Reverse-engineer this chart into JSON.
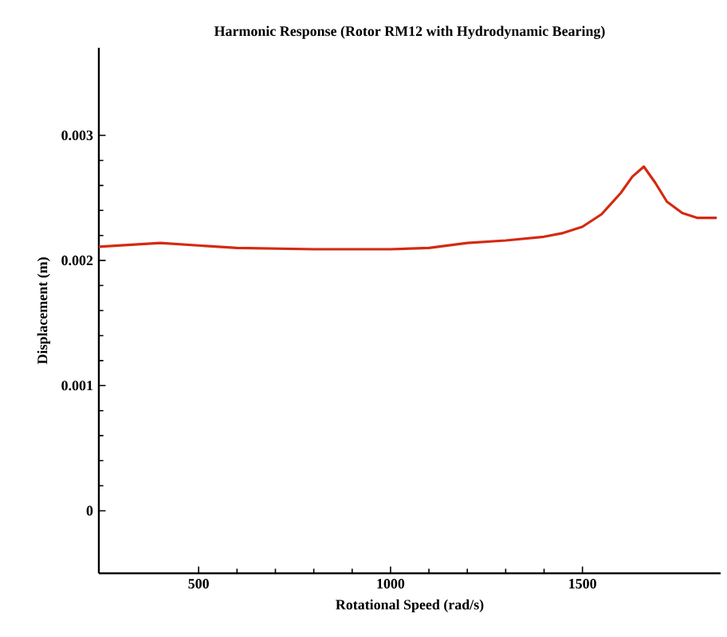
{
  "chart_data": {
    "type": "line",
    "title": "Harmonic Response (Rotor RM12 with Hydrodynamic Bearing)",
    "xlabel": "Rotational Speed (rad/s)",
    "ylabel": "Displacement (m)",
    "x": [
      240,
      400,
      600,
      800,
      1000,
      1100,
      1200,
      1300,
      1400,
      1450,
      1500,
      1550,
      1600,
      1630,
      1660,
      1690,
      1720,
      1760,
      1800,
      1850
    ],
    "series": [
      {
        "color": "#d42a10",
        "values": [
          0.00211,
          0.00214,
          0.0021,
          0.00209,
          0.00209,
          0.0021,
          0.00214,
          0.00216,
          0.00219,
          0.00222,
          0.00227,
          0.00237,
          0.00254,
          0.00267,
          0.00275,
          0.00262,
          0.00247,
          0.00238,
          0.00234,
          0.00234
        ]
      }
    ],
    "xlim": [
      240,
      1860
    ],
    "ylim": [
      -0.0005,
      0.0037
    ],
    "xticks": [
      500,
      1000,
      1500
    ],
    "yticks": [
      0,
      0.001,
      0.002,
      0.003
    ],
    "marker": "none",
    "line_style": "solid"
  }
}
